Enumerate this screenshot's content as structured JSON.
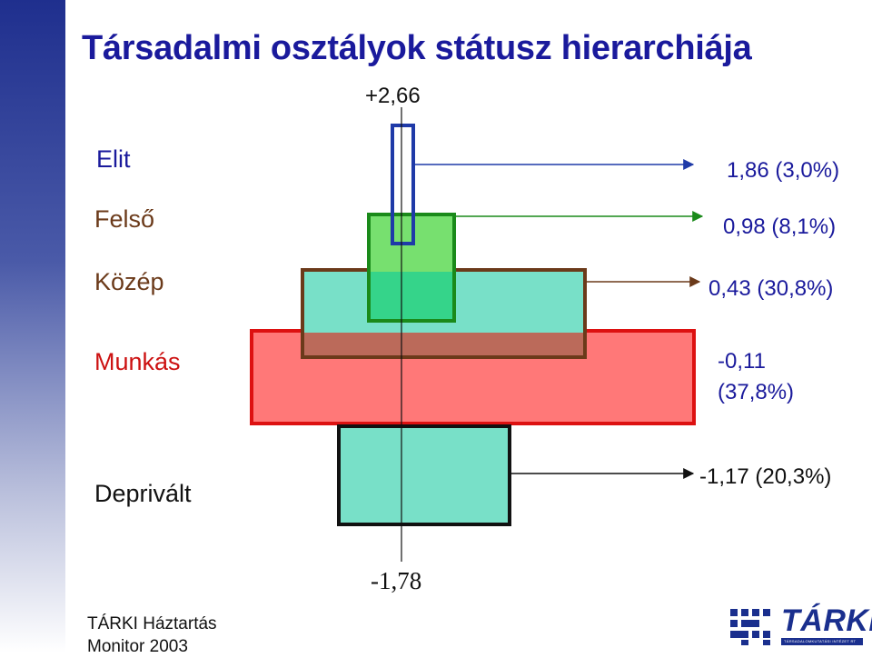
{
  "title": "Társadalmi osztályok státusz hierarchiája",
  "axis": {
    "top_label": "+2,66",
    "bottom_label": "-1,78"
  },
  "classes": [
    {
      "name": "Elit",
      "value_label": "1,86 (3,0%)"
    },
    {
      "name": "Felső",
      "value_label": "0,98 (8,1%)"
    },
    {
      "name": "Közép",
      "value_label": "0,43 (30,8%)"
    },
    {
      "name": "Munkás",
      "value_label_line1": "-0,11",
      "value_label_line2": "(37,8%)"
    },
    {
      "name": "Deprivált",
      "value_label": "-1,17 (20,3%)"
    }
  ],
  "footer": {
    "line1": "TÁRKI Háztartás",
    "line2": "Monitor 2003"
  },
  "logo": {
    "text": "TÁRKI",
    "subtitle": "TÁRSADALOMKUTATÁSI INTÉZET RT"
  },
  "colors": {
    "title": "#1a1a9c",
    "elit_border": "#1f3aa8",
    "felso_fill": "#77e06f",
    "felso_border": "#1a8a1a",
    "kozep_fill": "#78e0c8",
    "kozep_border": "#6b3a1a",
    "munkas_fill": "#ff7878",
    "munkas_border": "#dd1111",
    "deprivalt_fill": "#78e0c8",
    "deprivalt_border": "#111111"
  }
}
